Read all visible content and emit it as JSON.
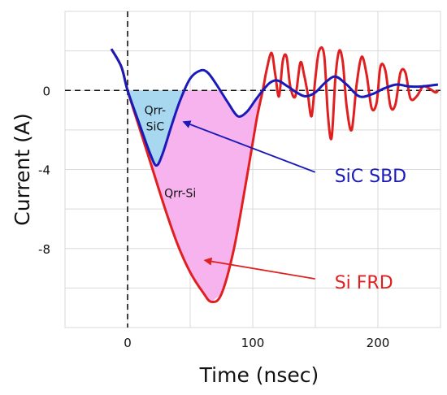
{
  "chart_data": {
    "type": "line",
    "title": "",
    "xlabel": "Time (nsec)",
    "ylabel": "Current (A)",
    "xlim": [
      -50,
      250
    ],
    "ylim": [
      -12,
      4
    ],
    "x_ticks": [
      0,
      100,
      200
    ],
    "y_ticks": [
      0,
      -4,
      -8
    ],
    "grid": true,
    "series": [
      {
        "name": "Si FRD",
        "color": "#e02020",
        "points": [
          [
            -13,
            2.1
          ],
          [
            -5,
            1.2
          ],
          [
            0,
            0
          ],
          [
            10,
            -2.0
          ],
          [
            20,
            -4.0
          ],
          [
            30,
            -6.0
          ],
          [
            40,
            -7.8
          ],
          [
            50,
            -9.2
          ],
          [
            60,
            -10.2
          ],
          [
            67,
            -10.7
          ],
          [
            75,
            -10.3
          ],
          [
            85,
            -8.0
          ],
          [
            95,
            -4.5
          ],
          [
            103,
            -1.5
          ],
          [
            108,
            0.0
          ],
          [
            111,
            1.0
          ],
          [
            115,
            1.9
          ],
          [
            118,
            0.8
          ],
          [
            121,
            -0.3
          ],
          [
            124,
            1.5
          ],
          [
            127,
            1.7
          ],
          [
            130,
            0.2
          ],
          [
            134,
            -0.3
          ],
          [
            138,
            1.4
          ],
          [
            141,
            0.8
          ],
          [
            144,
            -0.2
          ],
          [
            147,
            -1.3
          ],
          [
            150,
            0.6
          ],
          [
            153,
            2.0
          ],
          [
            157,
            1.8
          ],
          [
            160,
            -1.2
          ],
          [
            163,
            -2.4
          ],
          [
            166,
            0.6
          ],
          [
            169,
            2.0
          ],
          [
            172,
            1.4
          ],
          [
            175,
            -0.8
          ],
          [
            179,
            -2.0
          ],
          [
            183,
            0.3
          ],
          [
            187,
            1.7
          ],
          [
            191,
            0.8
          ],
          [
            195,
            -0.9
          ],
          [
            199,
            -0.6
          ],
          [
            202,
            1.2
          ],
          [
            206,
            1.0
          ],
          [
            210,
            -0.8
          ],
          [
            214,
            -0.7
          ],
          [
            218,
            0.9
          ],
          [
            222,
            0.9
          ],
          [
            226,
            -0.4
          ],
          [
            231,
            -0.3
          ],
          [
            236,
            0.2
          ],
          [
            241,
            0.1
          ],
          [
            246,
            -0.1
          ],
          [
            248,
            0.0
          ]
        ]
      },
      {
        "name": "SiC SBD",
        "color": "#1a1ab8",
        "points": [
          [
            -13,
            2.1
          ],
          [
            -5,
            1.2
          ],
          [
            0,
            0
          ],
          [
            10,
            -1.8
          ],
          [
            18,
            -3.2
          ],
          [
            23,
            -3.8
          ],
          [
            28,
            -3.2
          ],
          [
            35,
            -1.8
          ],
          [
            42,
            -0.5
          ],
          [
            50,
            0.6
          ],
          [
            58,
            1.0
          ],
          [
            64,
            0.9
          ],
          [
            72,
            0.2
          ],
          [
            80,
            -0.6
          ],
          [
            88,
            -1.3
          ],
          [
            95,
            -1.1
          ],
          [
            102,
            -0.5
          ],
          [
            108,
            0.0
          ],
          [
            114,
            0.4
          ],
          [
            120,
            0.5
          ],
          [
            128,
            0.2
          ],
          [
            135,
            -0.1
          ],
          [
            142,
            -0.3
          ],
          [
            150,
            -0.1
          ],
          [
            158,
            0.4
          ],
          [
            166,
            0.7
          ],
          [
            175,
            0.3
          ],
          [
            185,
            -0.3
          ],
          [
            195,
            -0.2
          ],
          [
            205,
            0.1
          ],
          [
            215,
            0.3
          ],
          [
            225,
            0.2
          ],
          [
            235,
            0.2
          ],
          [
            248,
            0.3
          ]
        ]
      }
    ],
    "shaded_regions": [
      {
        "label": "Qrr-SiC",
        "color": "#a7d8f0",
        "between": "SiC SBD curve and 0 A",
        "x_range": [
          0,
          46
        ]
      },
      {
        "label": "Qrr-Si",
        "color": "#f7b3ee",
        "between": "Si FRD curve and SiC SBD curve / 0 A",
        "x_range": [
          0,
          108
        ]
      }
    ],
    "annotations": [
      {
        "text": "Qrr-\nSiC",
        "x": 22,
        "y": -1.2
      },
      {
        "text": "Qrr-Si",
        "x": 42,
        "y": -5.4
      },
      {
        "text": "SiC SBD",
        "x": 155,
        "y": -4.3,
        "color": "#1a1ab8",
        "arrow_to": [
          45,
          -1.6
        ]
      },
      {
        "text": "Si FRD",
        "x": 155,
        "y": -9.7,
        "color": "#e02020",
        "arrow_to": [
          62,
          -8.6
        ]
      }
    ],
    "zero_line": {
      "y": 0,
      "style": "dashed"
    },
    "vertical_line": {
      "x": 0,
      "style": "dashed"
    }
  }
}
